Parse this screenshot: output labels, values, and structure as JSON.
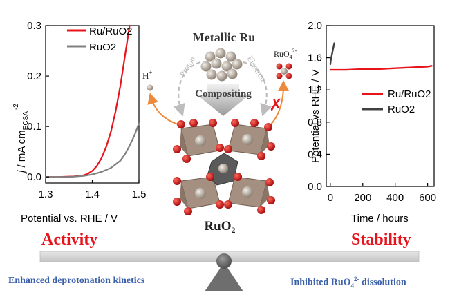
{
  "left_chart": {
    "type": "line",
    "ylabel_j": "j",
    "ylabel_rest": " / mA cm",
    "ylabel_sub": "ECSA",
    "ylabel_sup": "-2",
    "xlabel": "Potential vs. RHE / V",
    "xlim": [
      1.3,
      1.5
    ],
    "ylim": [
      -0.012,
      0.3
    ],
    "xticks": [
      "1.3",
      "1.4",
      "1.5"
    ],
    "yticks": [
      "0.0",
      "0.1",
      "0.2",
      "0.3"
    ],
    "legend": [
      "Ru/RuO2",
      "RuO2"
    ],
    "colors": {
      "Ru/RuO2": "#e8141c",
      "RuO2": "#808080"
    },
    "series": [
      {
        "name": "Ru/RuO2",
        "x": [
          1.3,
          1.33,
          1.36,
          1.38,
          1.39,
          1.4,
          1.41,
          1.42,
          1.43,
          1.44,
          1.45,
          1.46,
          1.47,
          1.48
        ],
        "y": [
          0.0,
          0.0,
          0.001,
          0.003,
          0.006,
          0.012,
          0.022,
          0.038,
          0.06,
          0.09,
          0.13,
          0.18,
          0.24,
          0.3
        ]
      },
      {
        "name": "RuO2",
        "x": [
          1.3,
          1.35,
          1.38,
          1.4,
          1.42,
          1.44,
          1.46,
          1.47,
          1.48,
          1.49,
          1.5
        ],
        "y": [
          0.0,
          0.0,
          0.002,
          0.005,
          0.01,
          0.018,
          0.032,
          0.045,
          0.062,
          0.082,
          0.106
        ]
      }
    ]
  },
  "right_chart": {
    "type": "line",
    "ylabel": "Potential vs RHE / V",
    "xlabel": "Time / hours",
    "xlim": [
      -25,
      640
    ],
    "ylim": [
      0.0,
      2.0
    ],
    "xticks": [
      "0",
      "200",
      "400",
      "600"
    ],
    "yticks": [
      "0.0",
      "0.4",
      "0.8",
      "1.2",
      "1.6",
      "2.0"
    ],
    "legend": [
      "Ru/RuO2",
      "RuO2"
    ],
    "colors": {
      "Ru/RuO2": "#e8141c",
      "RuO2": "#404040"
    },
    "series": [
      {
        "name": "Ru/RuO2",
        "x": [
          0,
          100,
          200,
          300,
          400,
          500,
          600,
          625
        ],
        "y": [
          1.45,
          1.45,
          1.46,
          1.46,
          1.47,
          1.48,
          1.49,
          1.5
        ]
      },
      {
        "name": "RuO2",
        "x": [
          0,
          4,
          8,
          12,
          16,
          20,
          24
        ],
        "y": [
          1.52,
          1.58,
          1.62,
          1.66,
          1.7,
          1.74,
          1.78
        ]
      }
    ]
  },
  "center": {
    "metallic_ru": "Metallic Ru",
    "compositing": "Compositing",
    "proton": "Proton",
    "electron": "Electron",
    "h_plus": "H",
    "h_sup": "+",
    "ruo4_main": "RuO",
    "ruo4_sub": "4",
    "ruo4_sup": "2-",
    "ruo2_main": "RuO",
    "ruo2_sub": "2",
    "blocked_mark": "✗"
  },
  "bottom": {
    "activity": "Activity",
    "stability": "Stability",
    "left_caption": "Enhanced deprotonation kinetics",
    "right_main": "Inhibited RuO",
    "right_sub": "4",
    "right_sup": "2-",
    "right_tail": " dissolution"
  },
  "colors": {
    "red_title": "#e8141c",
    "blue_caption": "#3a5fa8",
    "beam": "#d5d5d5",
    "fulcrum": "#6e6e6e",
    "arrow_orange": "#ed8a3b"
  }
}
